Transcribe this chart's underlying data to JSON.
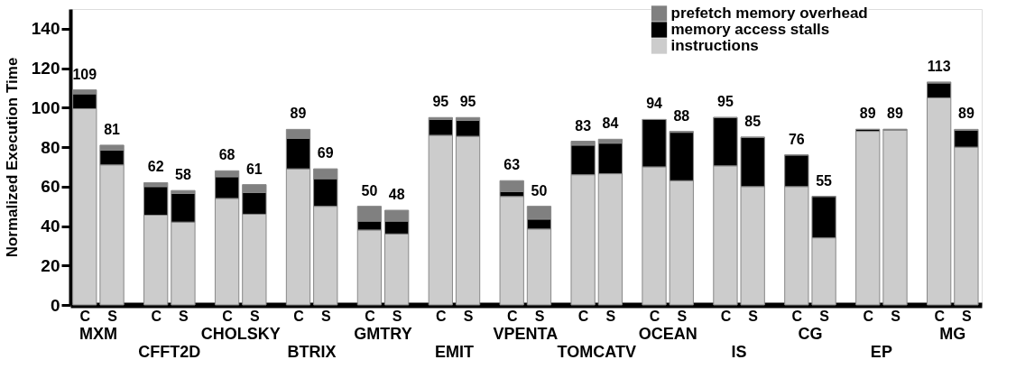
{
  "chart_data": {
    "type": "bar",
    "stacked": true,
    "ylabel": "Normalized Execution Time",
    "categories": [
      "C",
      "S",
      "C",
      "S",
      "C",
      "S",
      "C",
      "S",
      "C",
      "S",
      "C",
      "S",
      "C",
      "S",
      "C",
      "S",
      "C",
      "S",
      "C",
      "S",
      "C",
      "S",
      "C",
      "S",
      "C",
      "S"
    ],
    "annotations": [
      "MXM",
      "CFFT2D",
      "CHOLSKY",
      "BTRIX",
      "GMTRY",
      "EMIT",
      "VPENTA",
      "TOMCATV",
      "OCEAN",
      "IS",
      "CG",
      "EP",
      "MG"
    ],
    "series": [
      {
        "name": "instructions",
        "color": "#cccccc",
        "values": [
          99.5,
          71,
          45.5,
          42,
          54,
          46,
          69,
          50,
          38,
          36,
          86,
          85.5,
          55,
          38.5,
          66,
          66.5,
          70,
          63,
          70.5,
          60,
          60,
          34,
          88,
          88.5,
          105,
          80
        ]
      },
      {
        "name": "memory access stalls",
        "color": "#000000",
        "values": [
          7.5,
          7.5,
          14.5,
          14.5,
          11,
          11,
          15.5,
          14,
          4.5,
          6.5,
          8,
          8,
          2.5,
          5,
          15,
          15.5,
          24,
          24.5,
          24.5,
          25,
          16,
          21,
          1,
          0.5,
          7.5,
          8.5
        ]
      },
      {
        "name": "prefetch memory overhead",
        "color": "#808080",
        "values": [
          2,
          2.5,
          2,
          1.5,
          3,
          4,
          4.5,
          5,
          7.5,
          5.5,
          1,
          1.5,
          5.5,
          6.5,
          2,
          2,
          0,
          0.5,
          0,
          0,
          0,
          0,
          0,
          0,
          0.5,
          0.5
        ]
      }
    ],
    "totals": [
      "109",
      "81",
      "62",
      "58",
      "68",
      "61",
      "89",
      "69",
      "50",
      "48",
      "95",
      "95",
      "63",
      "50",
      "83",
      "84",
      "94",
      "88",
      "95",
      "85",
      "76",
      "55",
      "89",
      "89",
      "113",
      "89"
    ],
    "ylim": [
      0,
      150
    ],
    "yticks": [
      0,
      20,
      40,
      60,
      80,
      100,
      120,
      140
    ],
    "grid": false,
    "legend": "top right"
  }
}
